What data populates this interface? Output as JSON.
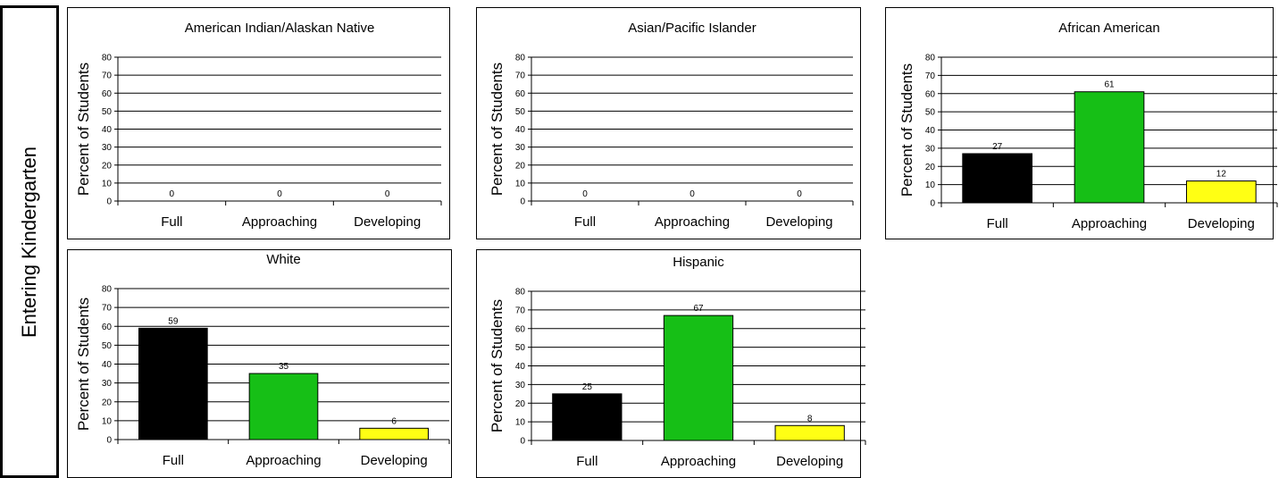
{
  "side_label": "Entering Kindergarten",
  "colors": {
    "Full": "#000000",
    "Approaching": "#16bf16",
    "Developing": "#ffff14"
  },
  "chart_data": [
    {
      "type": "bar",
      "title": "American Indian/Alaskan Native",
      "ylabel": "Percent of Students",
      "xlabel": "",
      "categories": [
        "Full",
        "Approaching",
        "Developing"
      ],
      "values": [
        0,
        0,
        0
      ],
      "ylim": [
        0,
        80
      ],
      "yticks": [
        0,
        10,
        20,
        30,
        40,
        50,
        60,
        70,
        80
      ],
      "grid": true,
      "legend": "none"
    },
    {
      "type": "bar",
      "title": "Asian/Pacific Islander",
      "ylabel": "Percent of Students",
      "xlabel": "",
      "categories": [
        "Full",
        "Approaching",
        "Developing"
      ],
      "values": [
        0,
        0,
        0
      ],
      "ylim": [
        0,
        80
      ],
      "yticks": [
        0,
        10,
        20,
        30,
        40,
        50,
        60,
        70,
        80
      ],
      "grid": true,
      "legend": "none"
    },
    {
      "type": "bar",
      "title": "African American",
      "ylabel": "Percent of Students",
      "xlabel": "",
      "categories": [
        "Full",
        "Approaching",
        "Developing"
      ],
      "values": [
        27,
        61,
        12
      ],
      "ylim": [
        0,
        80
      ],
      "yticks": [
        0,
        10,
        20,
        30,
        40,
        50,
        60,
        70,
        80
      ],
      "grid": true,
      "legend": "none"
    },
    {
      "type": "bar",
      "title": "White",
      "ylabel": "Percent of Students",
      "xlabel": "",
      "categories": [
        "Full",
        "Approaching",
        "Developing"
      ],
      "values": [
        59,
        35,
        6
      ],
      "ylim": [
        0,
        80
      ],
      "yticks": [
        0,
        10,
        20,
        30,
        40,
        50,
        60,
        70,
        80
      ],
      "grid": true,
      "legend": "none"
    },
    {
      "type": "bar",
      "title": "Hispanic",
      "ylabel": "Percent of Students",
      "xlabel": "",
      "categories": [
        "Full",
        "Approaching",
        "Developing"
      ],
      "values": [
        25,
        67,
        8
      ],
      "ylim": [
        0,
        80
      ],
      "yticks": [
        0,
        10,
        20,
        30,
        40,
        50,
        60,
        70,
        80
      ],
      "grid": true,
      "legend": "none"
    }
  ]
}
